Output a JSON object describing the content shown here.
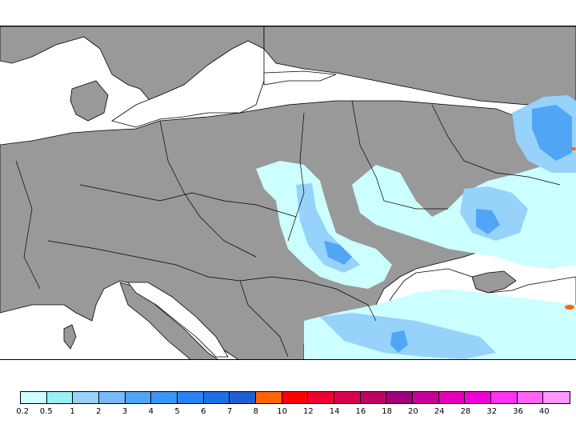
{
  "map": {
    "region": "Central and Eastern Europe, Black Sea",
    "land_color": "#999999",
    "sea_color": "#ffffff",
    "border_color": "#000000"
  },
  "legend": {
    "labels": [
      "0.2",
      "0.5",
      "1",
      "2",
      "3",
      "4",
      "5",
      "6",
      "7",
      "8",
      "10",
      "12",
      "14",
      "16",
      "18",
      "20",
      "24",
      "28",
      "32",
      "36",
      "40"
    ],
    "colors": [
      "#ccffff",
      "#99f0f5",
      "#96d2fa",
      "#78b9fa",
      "#50a5f5",
      "#3c96f5",
      "#2b82f0",
      "#1f6ee6",
      "#1e5fd2",
      "#ff6400",
      "#ff0000",
      "#f00032",
      "#dc0050",
      "#be0064",
      "#a0007d",
      "#c80096",
      "#e600b4",
      "#f000d2",
      "#ff32f0",
      "#ff64f5",
      "#ff96ff"
    ]
  }
}
